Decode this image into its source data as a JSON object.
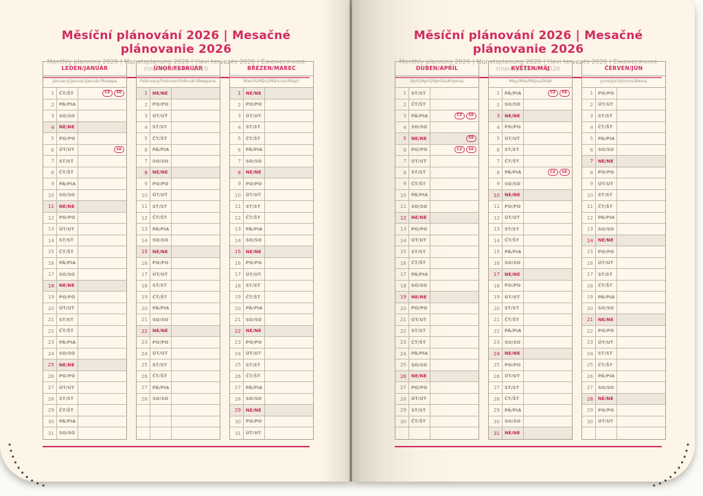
{
  "page_header": {
    "title": "Měsíční plánování 2026 | Mesačné plánovanie 2026",
    "subtitle": "Monthly planning 2026 | Monatsplanung 2026 | Havi tervezés 2026 | Ежемесячное планирование 2026"
  },
  "day_abbreviations": [
    "PO/PO",
    "ÚT/UT",
    "ST/ST",
    "ČT/ŠT",
    "PÁ/PIA",
    "SO/SO",
    "NE/NE"
  ],
  "rows_per_column": 31,
  "sunday_index": 6,
  "badge_labels": [
    "CZ",
    "SK"
  ],
  "months": [
    {
      "id": "january",
      "page": "left",
      "header": "LEDEN/JANUÁR",
      "languages": "January/Januar/Január/Январь",
      "days_in_month": 31,
      "first_weekday_index": 3,
      "holiday_badges": {
        "1": [
          "CZ",
          "SK"
        ],
        "6": [
          "SK"
        ]
      }
    },
    {
      "id": "february",
      "page": "left",
      "header": "ÚNOR/FEBRUÁR",
      "languages": "February/Februar/Február/Февраль",
      "days_in_month": 28,
      "first_weekday_index": 6,
      "holiday_badges": {}
    },
    {
      "id": "march",
      "page": "left",
      "header": "BŘEZEN/MAREC",
      "languages": "March/März/Március/Март",
      "days_in_month": 31,
      "first_weekday_index": 6,
      "holiday_badges": {}
    },
    {
      "id": "april",
      "page": "right",
      "header": "DUBEN/APRÍL",
      "languages": "April/April/Április/Апрель",
      "days_in_month": 30,
      "first_weekday_index": 2,
      "holiday_badges": {
        "3": [
          "CZ",
          "SK"
        ],
        "5": [
          "SK"
        ],
        "6": [
          "CZ",
          "SK"
        ]
      }
    },
    {
      "id": "may",
      "page": "right",
      "header": "KVĚTEN/MÁJ",
      "languages": "May/Mai/Május/Май",
      "days_in_month": 31,
      "first_weekday_index": 4,
      "holiday_badges": {
        "1": [
          "CZ",
          "SK"
        ],
        "8": [
          "CZ",
          "SK"
        ]
      }
    },
    {
      "id": "june",
      "page": "right",
      "header": "ČERVEN/JÚN",
      "languages": "June/Juni/Június/Июнь",
      "days_in_month": 30,
      "first_weekday_index": 0,
      "holiday_badges": {}
    }
  ],
  "colors": {
    "accent_pink": "#d02c62",
    "sunday_red": "#c32450",
    "sunday_row_background": "#eee7db",
    "text_gray": "#8d8779",
    "table_border": "#b6ad9e",
    "page_cream": "#fdf5e7"
  }
}
